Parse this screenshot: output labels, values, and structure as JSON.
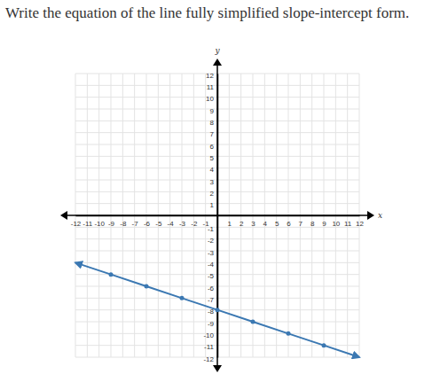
{
  "chart_data": {
    "type": "line",
    "title": "Write the equation of the line fully simplified slope-intercept form.",
    "x_label": "x",
    "y_label": "y",
    "x": [
      -12,
      -9,
      -6,
      -3,
      0,
      3,
      6,
      9,
      12
    ],
    "values": [
      -4,
      -5,
      -6,
      -7,
      -8,
      -9,
      -10,
      -11,
      -12
    ],
    "color": "#3b78b2",
    "marker": "circle",
    "xlim": [
      -12,
      12
    ],
    "ylim": [
      -12,
      12
    ],
    "xticks": [
      -12,
      -11,
      -10,
      -9,
      -8,
      -7,
      -6,
      -5,
      -4,
      -3,
      -2,
      -1,
      1,
      2,
      3,
      4,
      5,
      6,
      7,
      8,
      9,
      10,
      11,
      12
    ],
    "yticks": [
      -12,
      -11,
      -10,
      -9,
      -8,
      -7,
      -6,
      -5,
      -4,
      -3,
      -2,
      -1,
      1,
      2,
      3,
      4,
      5,
      6,
      7,
      8,
      9,
      10,
      11,
      12
    ],
    "grid": true
  }
}
